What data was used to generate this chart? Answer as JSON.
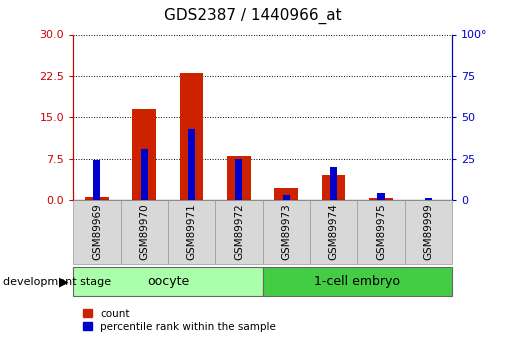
{
  "title": "GDS2387 / 1440966_at",
  "samples": [
    "GSM89969",
    "GSM89970",
    "GSM89971",
    "GSM89972",
    "GSM89973",
    "GSM89974",
    "GSM89975",
    "GSM89999"
  ],
  "count_values": [
    0.5,
    16.5,
    23.0,
    8.0,
    2.2,
    4.5,
    0.4,
    0.0
  ],
  "percentile_values": [
    24,
    31,
    43,
    25,
    3,
    20,
    4,
    1.5
  ],
  "groups": [
    {
      "label": "oocyte",
      "start": 0,
      "end": 4,
      "color": "#aaffaa"
    },
    {
      "label": "1-cell embryo",
      "start": 4,
      "end": 8,
      "color": "#44cc44"
    }
  ],
  "left_ylim": [
    0,
    30
  ],
  "right_ylim": [
    0,
    100
  ],
  "left_yticks": [
    0,
    7.5,
    15,
    22.5,
    30
  ],
  "right_yticks": [
    0,
    25,
    50,
    75,
    100
  ],
  "left_ylabel_color": "#CC0000",
  "right_ylabel_color": "#0000CC",
  "count_bar_width": 0.5,
  "percentile_bar_width": 0.15,
  "count_color": "#CC2200",
  "percentile_color": "#0000CC",
  "grid_color": "black",
  "group_label_fontsize": 9,
  "tick_label_fontsize": 7.5,
  "title_fontsize": 11,
  "legend_count_label": "count",
  "legend_percentile_label": "percentile rank within the sample",
  "dev_stage_label": "development stage"
}
